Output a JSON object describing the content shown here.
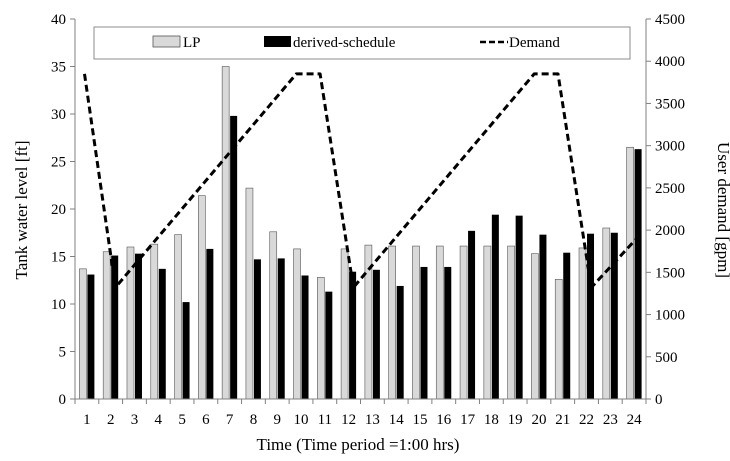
{
  "chart_data": {
    "type": "bar",
    "xlabel": "Time (Time period =1:00 hrs)",
    "ylabel": "Tank water level [ft]",
    "y2label": "User demand [gpm]",
    "ylim": [
      0,
      40
    ],
    "y2lim": [
      0,
      4500
    ],
    "yticks": [
      "0",
      "5",
      "10",
      "15",
      "20",
      "25",
      "30",
      "35",
      "40"
    ],
    "y2ticks": [
      "0",
      "500",
      "1000",
      "1500",
      "2000",
      "2500",
      "3000",
      "3500",
      "4000",
      "4500"
    ],
    "grid": false,
    "legend_position": "top",
    "categories": [
      "1",
      "2",
      "3",
      "4",
      "5",
      "6",
      "7",
      "8",
      "9",
      "10",
      "11",
      "12",
      "13",
      "14",
      "15",
      "16",
      "17",
      "18",
      "19",
      "20",
      "21",
      "22",
      "23",
      "24"
    ],
    "series": [
      {
        "name": "LP",
        "type": "bar",
        "axis": "left",
        "color": "#d9d9d9",
        "values": [
          13.7,
          15.5,
          16.0,
          16.3,
          17.3,
          21.4,
          35.0,
          22.2,
          17.6,
          15.8,
          12.8,
          15.8,
          16.2,
          16.1,
          16.1,
          16.1,
          16.1,
          16.1,
          16.1,
          15.3,
          12.6,
          15.9,
          18.0,
          26.5
        ]
      },
      {
        "name": "derived-schedule",
        "type": "bar",
        "axis": "left",
        "color": "#000000",
        "values": [
          13.1,
          15.1,
          15.3,
          13.7,
          10.2,
          15.8,
          29.8,
          14.7,
          14.8,
          13.0,
          11.3,
          13.4,
          13.6,
          11.9,
          13.9,
          13.9,
          17.7,
          19.4,
          19.3,
          17.3,
          15.4,
          17.4,
          17.5,
          26.3
        ]
      },
      {
        "name": "Demand",
        "type": "line",
        "axis": "right",
        "style": "dashed",
        "color": "#000000",
        "points": [
          {
            "x": 0.9,
            "y": 3850
          },
          {
            "x": 2.2,
            "y": 1320
          },
          {
            "x": 9.8,
            "y": 3850
          },
          {
            "x": 10.8,
            "y": 3850
          },
          {
            "x": 12.2,
            "y": 1320
          },
          {
            "x": 19.8,
            "y": 3850
          },
          {
            "x": 20.8,
            "y": 3850
          },
          {
            "x": 22.2,
            "y": 1320
          },
          {
            "x": 24.1,
            "y": 1900
          }
        ]
      }
    ]
  }
}
